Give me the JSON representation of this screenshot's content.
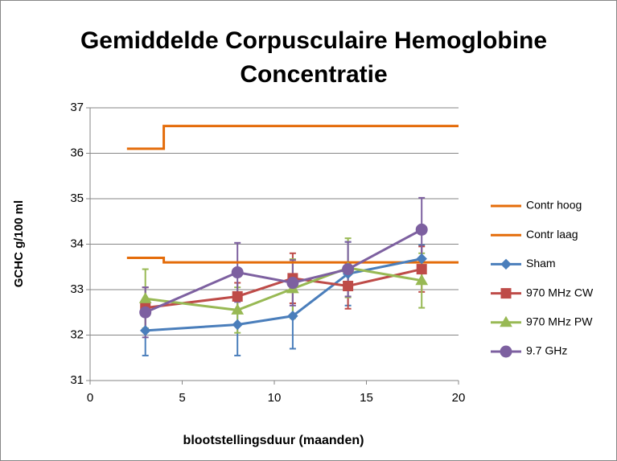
{
  "chart_data": {
    "type": "line",
    "title": "Gemiddelde Corpusculaire Hemoglobine Concentratie",
    "x_label": "blootstellingsduur (maanden)",
    "y_label": "GCHC g/100 ml",
    "xlim": [
      0,
      20
    ],
    "xticks": [
      0,
      5,
      10,
      15,
      20
    ],
    "ylim": [
      31,
      37
    ],
    "yticks": [
      31,
      32,
      33,
      34,
      35,
      36,
      37
    ],
    "grid": true,
    "legend": "right",
    "series": [
      {
        "name": "Contr hoog",
        "color": "#e46c0a",
        "marker": "none",
        "x": [
          2,
          4,
          4,
          20
        ],
        "values": [
          36.1,
          36.1,
          36.6,
          36.6
        ]
      },
      {
        "name": "Contr laag",
        "color": "#e46c0a",
        "marker": "none",
        "x": [
          2,
          4,
          4,
          20
        ],
        "values": [
          33.7,
          33.7,
          33.6,
          33.6
        ]
      },
      {
        "name": "Sham",
        "color": "#4a7ebb",
        "marker": "diamond",
        "x": [
          3,
          8,
          11,
          14,
          18
        ],
        "values": [
          32.1,
          32.23,
          32.42,
          33.35,
          33.68
        ],
        "errors": [
          0.55,
          0.68,
          0.72,
          0.7,
          0.3
        ]
      },
      {
        "name": "970 MHz CW",
        "color": "#be4b48",
        "marker": "square",
        "x": [
          3,
          8,
          11,
          14,
          18
        ],
        "values": [
          32.6,
          32.85,
          33.25,
          33.08,
          33.45
        ],
        "errors": [
          0.45,
          0.3,
          0.55,
          0.5,
          0.5
        ]
      },
      {
        "name": "970 MHz PW",
        "color": "#98b954",
        "marker": "triangle",
        "x": [
          3,
          8,
          11,
          14,
          18
        ],
        "values": [
          32.8,
          32.55,
          33.02,
          33.48,
          33.2
        ],
        "errors": [
          0.65,
          0.5,
          0.65,
          0.65,
          0.6
        ]
      },
      {
        "name": "9.7 GHz",
        "color": "#7d60a0",
        "marker": "circle",
        "x": [
          3,
          8,
          11,
          14,
          18
        ],
        "values": [
          32.5,
          33.38,
          33.15,
          33.45,
          34.32
        ],
        "errors": [
          0.55,
          0.65,
          0.5,
          0.6,
          0.7
        ]
      }
    ]
  }
}
